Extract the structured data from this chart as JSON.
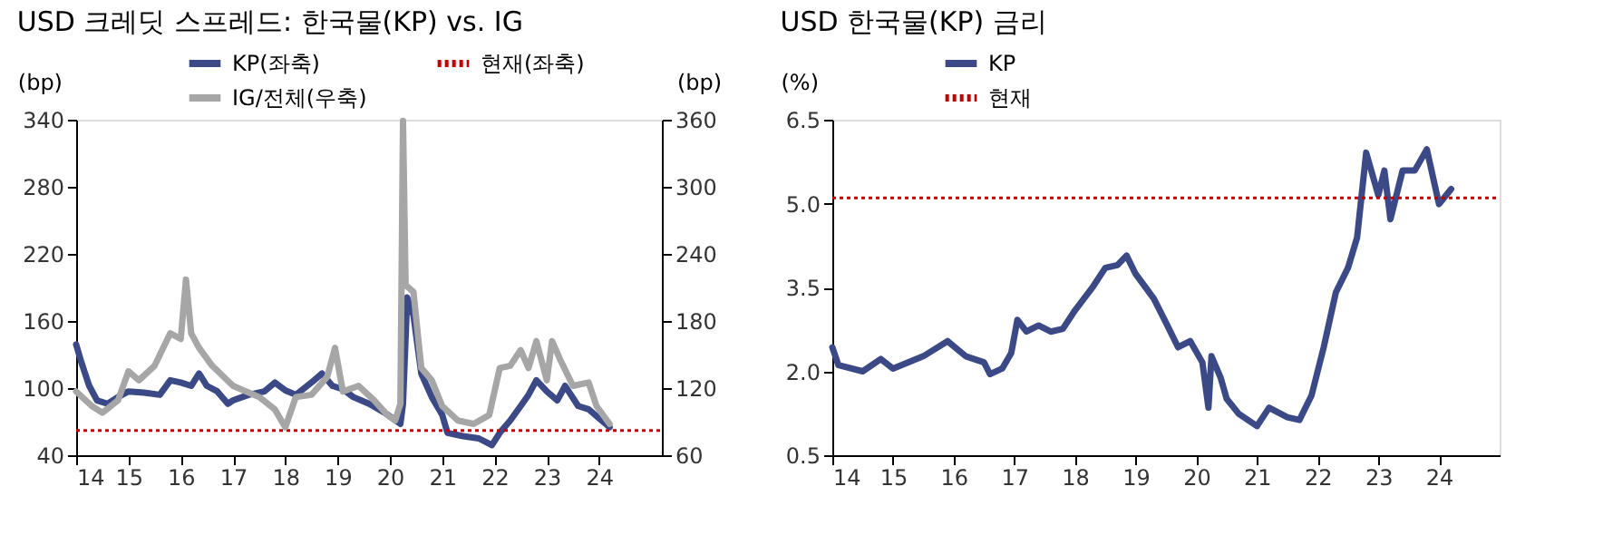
{
  "chart_data": [
    {
      "type": "line",
      "title": "USD 크레딧 스프레드: 한국물(KP) vs. IG",
      "ylabel": "(bp)",
      "y2label": "(bp)",
      "xlim": [
        14,
        25.2
      ],
      "xticks": [
        14,
        15,
        16,
        17,
        18,
        19,
        20,
        21,
        22,
        23,
        24
      ],
      "ylim": [
        40,
        340
      ],
      "yticks": [
        40,
        100,
        160,
        220,
        280,
        340
      ],
      "y2lim": [
        60,
        360
      ],
      "y2ticks": [
        60,
        120,
        180,
        240,
        300,
        360
      ],
      "legend": "top",
      "grid": false,
      "line_style": "solid",
      "marker": "none",
      "ref_lines": [
        {
          "axis": "y",
          "value": 62,
          "label": "현재(좌축)",
          "color": "#c00000",
          "line_style": "dotted"
        }
      ],
      "series": [
        {
          "name": "KP(좌축)",
          "color": "#3b4a86",
          "x": [
            14.0,
            14.1,
            14.25,
            14.4,
            14.6,
            14.8,
            15.0,
            15.3,
            15.6,
            15.8,
            16.0,
            16.2,
            16.35,
            16.5,
            16.7,
            16.9,
            17.0,
            17.3,
            17.6,
            17.8,
            18.0,
            18.2,
            18.5,
            18.7,
            18.9,
            19.1,
            19.3,
            19.6,
            19.9,
            20.2,
            20.25,
            20.33,
            20.45,
            20.6,
            20.8,
            21.0,
            21.1,
            21.4,
            21.7,
            21.95,
            22.1,
            22.3,
            22.5,
            22.65,
            22.8,
            23.0,
            23.2,
            23.35,
            23.6,
            23.8,
            24.0,
            24.2
          ],
          "values": [
            139,
            123,
            102,
            89,
            86,
            92,
            97,
            96,
            94,
            107,
            105,
            102,
            113,
            102,
            97,
            86,
            89,
            94,
            97,
            105,
            98,
            94,
            105,
            113,
            102,
            99,
            92,
            86,
            78,
            68,
            86,
            181,
            165,
            113,
            92,
            76,
            60,
            57,
            55,
            49,
            60,
            71,
            84,
            94,
            107,
            97,
            89,
            102,
            84,
            81,
            73,
            65
          ]
        },
        {
          "name": "IG/전체(우축)",
          "color": "#a6a6a6",
          "axis": "y2",
          "x": [
            14.0,
            14.3,
            14.5,
            14.8,
            15.0,
            15.2,
            15.5,
            15.8,
            16.0,
            16.1,
            16.2,
            16.35,
            16.6,
            17.0,
            17.5,
            17.8,
            18.0,
            18.2,
            18.5,
            18.8,
            18.95,
            19.1,
            19.4,
            19.7,
            19.95,
            20.1,
            20.2,
            20.25,
            20.3,
            20.45,
            20.6,
            20.8,
            21.0,
            21.3,
            21.6,
            21.9,
            22.1,
            22.3,
            22.5,
            22.65,
            22.8,
            23.0,
            23.1,
            23.25,
            23.5,
            23.8,
            23.95,
            24.2
          ],
          "values": [
            117,
            104,
            98,
            109,
            135,
            127,
            140,
            169,
            164,
            217,
            169,
            156,
            140,
            122,
            112,
            101,
            85,
            112,
            114,
            130,
            156,
            117,
            122,
            109,
            96,
            91,
            106,
            359,
            212,
            206,
            138,
            127,
            104,
            91,
            88,
            96,
            138,
            140,
            154,
            138,
            162,
            127,
            162,
            146,
            122,
            125,
            104,
            88
          ]
        }
      ]
    },
    {
      "type": "line",
      "title": "USD 한국물(KP) 금리",
      "ylabel": "(%)",
      "xlim": [
        14,
        25
      ],
      "xticks": [
        14,
        15,
        16,
        17,
        18,
        19,
        20,
        21,
        22,
        23,
        24
      ],
      "ylim": [
        0.5,
        6.5
      ],
      "yticks": [
        {
          "value": 0.5,
          "label": "0.5"
        },
        {
          "value": 2,
          "label": "2.0"
        },
        {
          "value": 3.5,
          "label": "3.5"
        },
        {
          "value": 5,
          "label": "5.0"
        },
        {
          "value": 6.5,
          "label": "6.5"
        }
      ],
      "legend": "top",
      "grid": false,
      "line_style": "solid",
      "marker": "none",
      "ref_lines": [
        {
          "axis": "y",
          "value": 5.1,
          "label": "현재",
          "color": "#c00000",
          "line_style": "dotted"
        }
      ],
      "series": [
        {
          "name": "KP",
          "color": "#3b4a86",
          "x": [
            14.0,
            14.1,
            14.5,
            14.8,
            15.0,
            15.5,
            15.9,
            16.2,
            16.5,
            16.6,
            16.8,
            16.95,
            17.05,
            17.2,
            17.4,
            17.6,
            17.8,
            18.0,
            18.3,
            18.5,
            18.7,
            18.85,
            19.0,
            19.3,
            19.5,
            19.7,
            19.9,
            20.1,
            20.2,
            20.25,
            20.4,
            20.5,
            20.7,
            21.0,
            21.2,
            21.5,
            21.7,
            21.9,
            22.1,
            22.3,
            22.5,
            22.65,
            22.8,
            23.0,
            23.1,
            23.2,
            23.4,
            23.6,
            23.8,
            24.0,
            24.2
          ],
          "values": [
            2.43,
            2.11,
            2.0,
            2.22,
            2.05,
            2.27,
            2.54,
            2.27,
            2.16,
            1.95,
            2.05,
            2.33,
            2.92,
            2.71,
            2.82,
            2.71,
            2.76,
            3.09,
            3.52,
            3.85,
            3.9,
            4.07,
            3.74,
            3.3,
            2.87,
            2.43,
            2.54,
            2.16,
            1.35,
            2.27,
            1.89,
            1.51,
            1.24,
            1.02,
            1.35,
            1.18,
            1.13,
            1.57,
            2.43,
            3.41,
            3.85,
            4.39,
            5.91,
            5.15,
            5.59,
            4.72,
            5.59,
            5.59,
            5.97,
            4.99,
            5.26
          ]
        }
      ]
    }
  ]
}
